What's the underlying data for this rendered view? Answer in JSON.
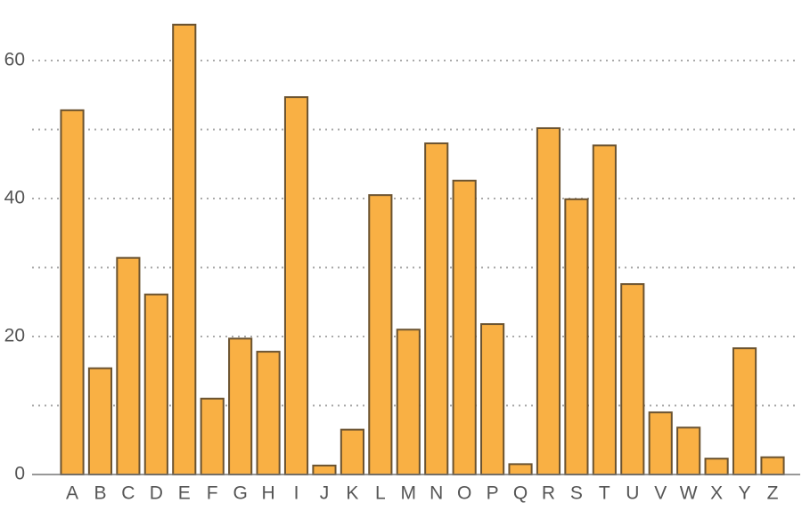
{
  "chart_data": {
    "type": "bar",
    "categories": [
      "A",
      "B",
      "C",
      "D",
      "E",
      "F",
      "G",
      "H",
      "I",
      "J",
      "K",
      "L",
      "M",
      "N",
      "O",
      "P",
      "Q",
      "R",
      "S",
      "T",
      "U",
      "V",
      "W",
      "X",
      "Y",
      "Z"
    ],
    "values": [
      52.8,
      15.4,
      31.4,
      26.1,
      65.2,
      11.0,
      19.7,
      17.8,
      54.7,
      1.3,
      6.5,
      40.5,
      21.0,
      48.0,
      42.6,
      21.8,
      1.5,
      50.2,
      39.9,
      47.7,
      27.6,
      9.0,
      6.8,
      2.3,
      18.3,
      2.5
    ],
    "color": "#f9b044",
    "edge_color": "#6b5330",
    "ylim": [
      0,
      66.2
    ],
    "yticks": [
      0,
      20,
      40,
      60
    ],
    "minor_yticks": [
      10,
      30,
      50
    ],
    "grid": true
  }
}
